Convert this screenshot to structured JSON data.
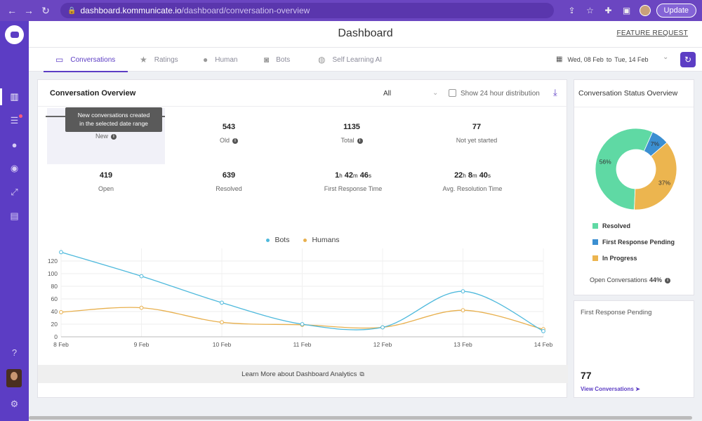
{
  "browser": {
    "url_host": "dashboard.kommunicate.io",
    "url_path": "/dashboard/conversation-overview",
    "update_label": "Update"
  },
  "header": {
    "title": "Dashboard",
    "feature_request": "FEATURE REQUEST"
  },
  "tabs": [
    {
      "label": "Conversations",
      "icon": "chat-icon",
      "active": true
    },
    {
      "label": "Ratings",
      "icon": "star-icon",
      "active": false
    },
    {
      "label": "Human",
      "icon": "person-icon",
      "active": false
    },
    {
      "label": "Bots",
      "icon": "bot-icon",
      "active": false
    },
    {
      "label": "Self Learning AI",
      "icon": "bulb-icon",
      "active": false
    }
  ],
  "date_range": {
    "from": "Wed, 08 Feb",
    "to_word": "to",
    "to": "Tue, 14 Feb"
  },
  "overview": {
    "title": "Conversation Overview",
    "filter_value": "All",
    "checkbox_label": "Show 24 hour distribution",
    "tooltip": {
      "line1": "New conversations created",
      "line2": "in the selected date range"
    },
    "stats_row1": [
      {
        "value": "",
        "label": "New",
        "info": true
      },
      {
        "value": "543",
        "label": "Old",
        "info": true
      },
      {
        "value": "1135",
        "label": "Total",
        "info": true
      },
      {
        "value": "77",
        "label": "Not yet started",
        "info": false
      }
    ],
    "stats_row2": [
      {
        "value": "419",
        "label": "Open"
      },
      {
        "value": "639",
        "label": "Resolved"
      }
    ],
    "first_response": {
      "h": "1",
      "h_unit": "h",
      "m": "42",
      "m_unit": "m",
      "s": "46",
      "s_unit": "s",
      "label": "First Response Time"
    },
    "avg_resolution": {
      "h": "22",
      "h_unit": "h",
      "m": "8",
      "m_unit": "m",
      "s": "40",
      "s_unit": "s",
      "label": "Avg. Resolution Time"
    },
    "learn_more": "Learn More about Dashboard Analytics"
  },
  "chart_data": [
    {
      "type": "line",
      "x": [
        "8 Feb",
        "9 Feb",
        "10 Feb",
        "11 Feb",
        "12 Feb",
        "13 Feb",
        "14 Feb"
      ],
      "series": [
        {
          "name": "Bots",
          "color": "#4eb9dc",
          "values": [
            134,
            96,
            54,
            20,
            15,
            72,
            9
          ]
        },
        {
          "name": "Humans",
          "color": "#e8b04e",
          "values": [
            39,
            46,
            23,
            19,
            15,
            42,
            12
          ]
        }
      ],
      "yticks": [
        0,
        20,
        40,
        60,
        80,
        100,
        120
      ],
      "ylim": [
        0,
        140
      ],
      "grid": true,
      "legend": "top-center"
    },
    {
      "type": "pie",
      "title": "Conversation Status Overview",
      "slices": [
        {
          "name": "Resolved",
          "value": 56,
          "label": "56%",
          "color": "#5fd9a4"
        },
        {
          "name": "First Response Pending",
          "value": 7,
          "label": "7%",
          "color": "#3b8fd1"
        },
        {
          "name": "In Progress",
          "value": 37,
          "label": "37%",
          "color": "#ecb54f"
        }
      ],
      "legend": "bottom"
    }
  ],
  "status": {
    "title": "Conversation Status Overview",
    "legend": [
      "Resolved",
      "First Response Pending",
      "In Progress"
    ],
    "open_label": "Open Conversations",
    "open_value": "44%"
  },
  "frp": {
    "title": "First Response Pending",
    "count": "77",
    "link": "View Conversations"
  }
}
